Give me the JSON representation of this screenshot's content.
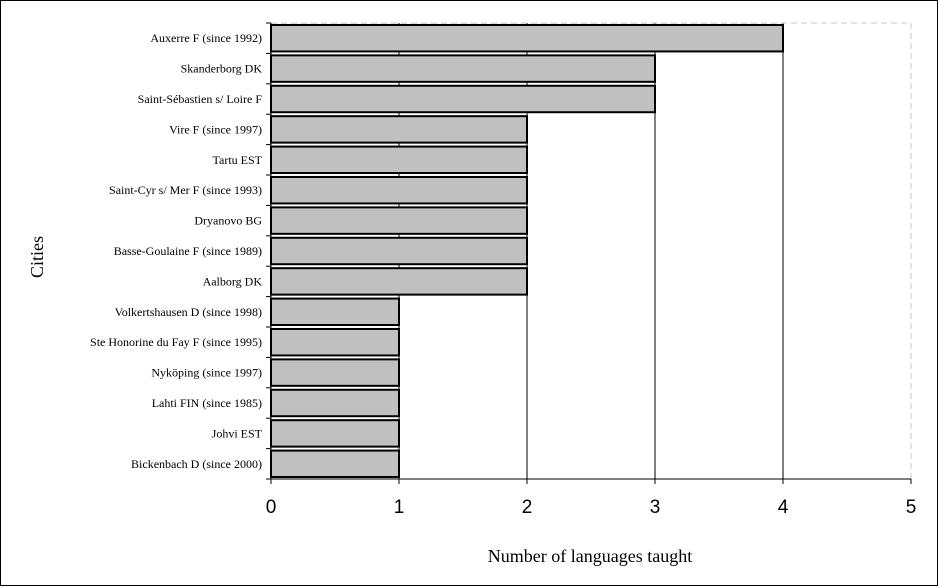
{
  "chart_data": {
    "type": "bar",
    "orientation": "horizontal",
    "categories": [
      "Auxerre F (since 1992)",
      "Skanderborg DK",
      "Saint-Sébastien s/ Loire F",
      "Vire F (since 1997)",
      "Tartu EST",
      "Saint-Cyr s/ Mer F (since 1993)",
      "Dryanovo BG",
      "Basse-Goulaine F (since 1989)",
      "Aalborg DK",
      "Volkertshausen D (since 1998)",
      "Ste Honorine du Fay F (since 1995)",
      "Nyköping (since 1997)",
      "Lahti FIN (since 1985)",
      "Johvi EST",
      "Bickenbach D (since 2000)"
    ],
    "values": [
      4,
      3,
      3,
      2,
      2,
      2,
      2,
      2,
      2,
      1,
      1,
      1,
      1,
      1,
      1
    ],
    "xlabel": "Number of languages taught",
    "ylabel": "Cities",
    "xlim": [
      0,
      5
    ],
    "xticks": [
      "0",
      "1",
      "2",
      "3",
      "4",
      "5"
    ],
    "grid": "vertical",
    "bar_color": "#c0c0c0",
    "bar_edge_color": "#000000"
  }
}
